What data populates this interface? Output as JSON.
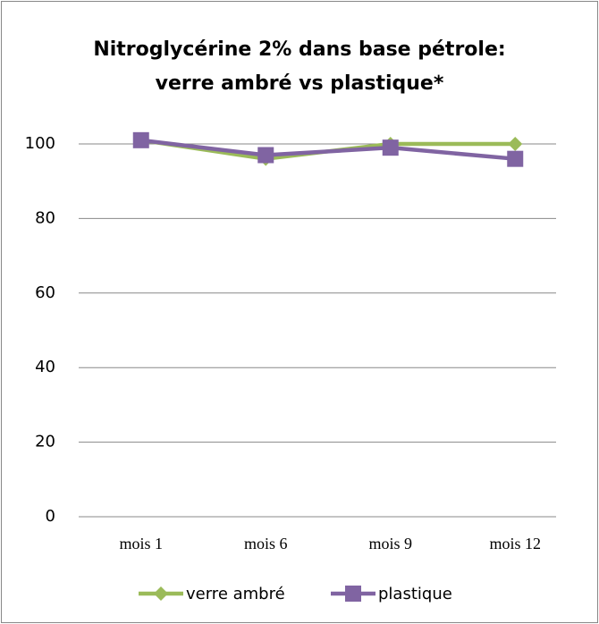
{
  "chart_data": {
    "type": "line",
    "title": "Nitroglycérine 2% dans base pétrole:",
    "subtitle": "verre ambré vs plastique*",
    "categories": [
      "mois 1",
      "mois 6",
      "mois 9",
      "mois 12"
    ],
    "series": [
      {
        "name": "verre ambré",
        "color": "#9bbb59",
        "marker": "diamond",
        "values": [
          101,
          96,
          100,
          100
        ]
      },
      {
        "name": "plastique",
        "color": "#8064a2",
        "marker": "square",
        "values": [
          101,
          97,
          99,
          96
        ]
      }
    ],
    "ylim": [
      0,
      100
    ],
    "yticks": [
      0,
      20,
      40,
      60,
      80,
      100
    ],
    "grid": true,
    "legend": "bottom"
  }
}
